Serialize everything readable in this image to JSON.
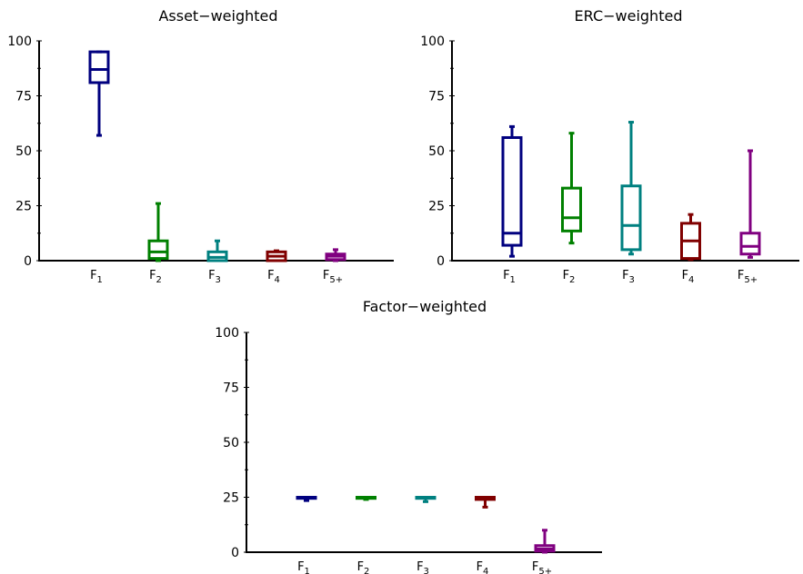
{
  "chart_data": [
    {
      "type": "box",
      "title": "Asset−weighted",
      "ylim": [
        0,
        100
      ],
      "yticks": [
        "0",
        "25",
        "50",
        "75",
        "100"
      ],
      "categories": [
        {
          "main": "F",
          "sub": "1"
        },
        {
          "main": "F",
          "sub": "2"
        },
        {
          "main": "F",
          "sub": "3"
        },
        {
          "main": "F",
          "sub": "4"
        },
        {
          "main": "F",
          "sub": "5+"
        }
      ],
      "colors": [
        "#00007f",
        "#008000",
        "#008080",
        "#800000",
        "#800080"
      ],
      "boxes": [
        {
          "min": 57,
          "q1": 81,
          "median": 87,
          "q3": 95,
          "max": 95
        },
        {
          "min": 0,
          "q1": 1,
          "median": 4,
          "q3": 9,
          "max": 26
        },
        {
          "min": 0,
          "q1": 0,
          "median": 1.5,
          "q3": 4,
          "max": 9
        },
        {
          "min": 0,
          "q1": 0,
          "median": 2,
          "q3": 4,
          "max": 4.5
        },
        {
          "min": 0,
          "q1": 0.5,
          "median": 2,
          "q3": 3,
          "max": 5
        }
      ]
    },
    {
      "type": "box",
      "title": "ERC−weighted",
      "ylim": [
        0,
        100
      ],
      "yticks": [
        "0",
        "25",
        "50",
        "75",
        "100"
      ],
      "categories": [
        {
          "main": "F",
          "sub": "1"
        },
        {
          "main": "F",
          "sub": "2"
        },
        {
          "main": "F",
          "sub": "3"
        },
        {
          "main": "F",
          "sub": "4"
        },
        {
          "main": "F",
          "sub": "5+"
        }
      ],
      "colors": [
        "#00007f",
        "#008000",
        "#008080",
        "#800000",
        "#800080"
      ],
      "boxes": [
        {
          "min": 2,
          "q1": 7,
          "median": 12.5,
          "q3": 56,
          "max": 61
        },
        {
          "min": 8,
          "q1": 13.5,
          "median": 19.5,
          "q3": 33,
          "max": 58
        },
        {
          "min": 3,
          "q1": 5,
          "median": 16,
          "q3": 34,
          "max": 63
        },
        {
          "min": 0.5,
          "q1": 1,
          "median": 9,
          "q3": 17,
          "max": 21
        },
        {
          "min": 1.5,
          "q1": 3,
          "median": 6.5,
          "q3": 12.5,
          "max": 50
        }
      ]
    },
    {
      "type": "box",
      "title": "Factor−weighted",
      "ylim": [
        0,
        100
      ],
      "yticks": [
        "0",
        "25",
        "50",
        "75",
        "100"
      ],
      "categories": [
        {
          "main": "F",
          "sub": "1"
        },
        {
          "main": "F",
          "sub": "2"
        },
        {
          "main": "F",
          "sub": "3"
        },
        {
          "main": "F",
          "sub": "4"
        },
        {
          "main": "F",
          "sub": "5+"
        }
      ],
      "colors": [
        "#00007f",
        "#008000",
        "#008080",
        "#800000",
        "#800080"
      ],
      "boxes": [
        {
          "min": 23.5,
          "q1": 24.5,
          "median": 25,
          "q3": 25,
          "max": 25
        },
        {
          "min": 24,
          "q1": 24.5,
          "median": 25,
          "q3": 25,
          "max": 25
        },
        {
          "min": 23,
          "q1": 24.5,
          "median": 25,
          "q3": 25,
          "max": 25
        },
        {
          "min": 20.5,
          "q1": 24,
          "median": 25,
          "q3": 25,
          "max": 25
        },
        {
          "min": 0,
          "q1": 0.5,
          "median": 1.5,
          "q3": 3,
          "max": 10
        }
      ]
    }
  ]
}
